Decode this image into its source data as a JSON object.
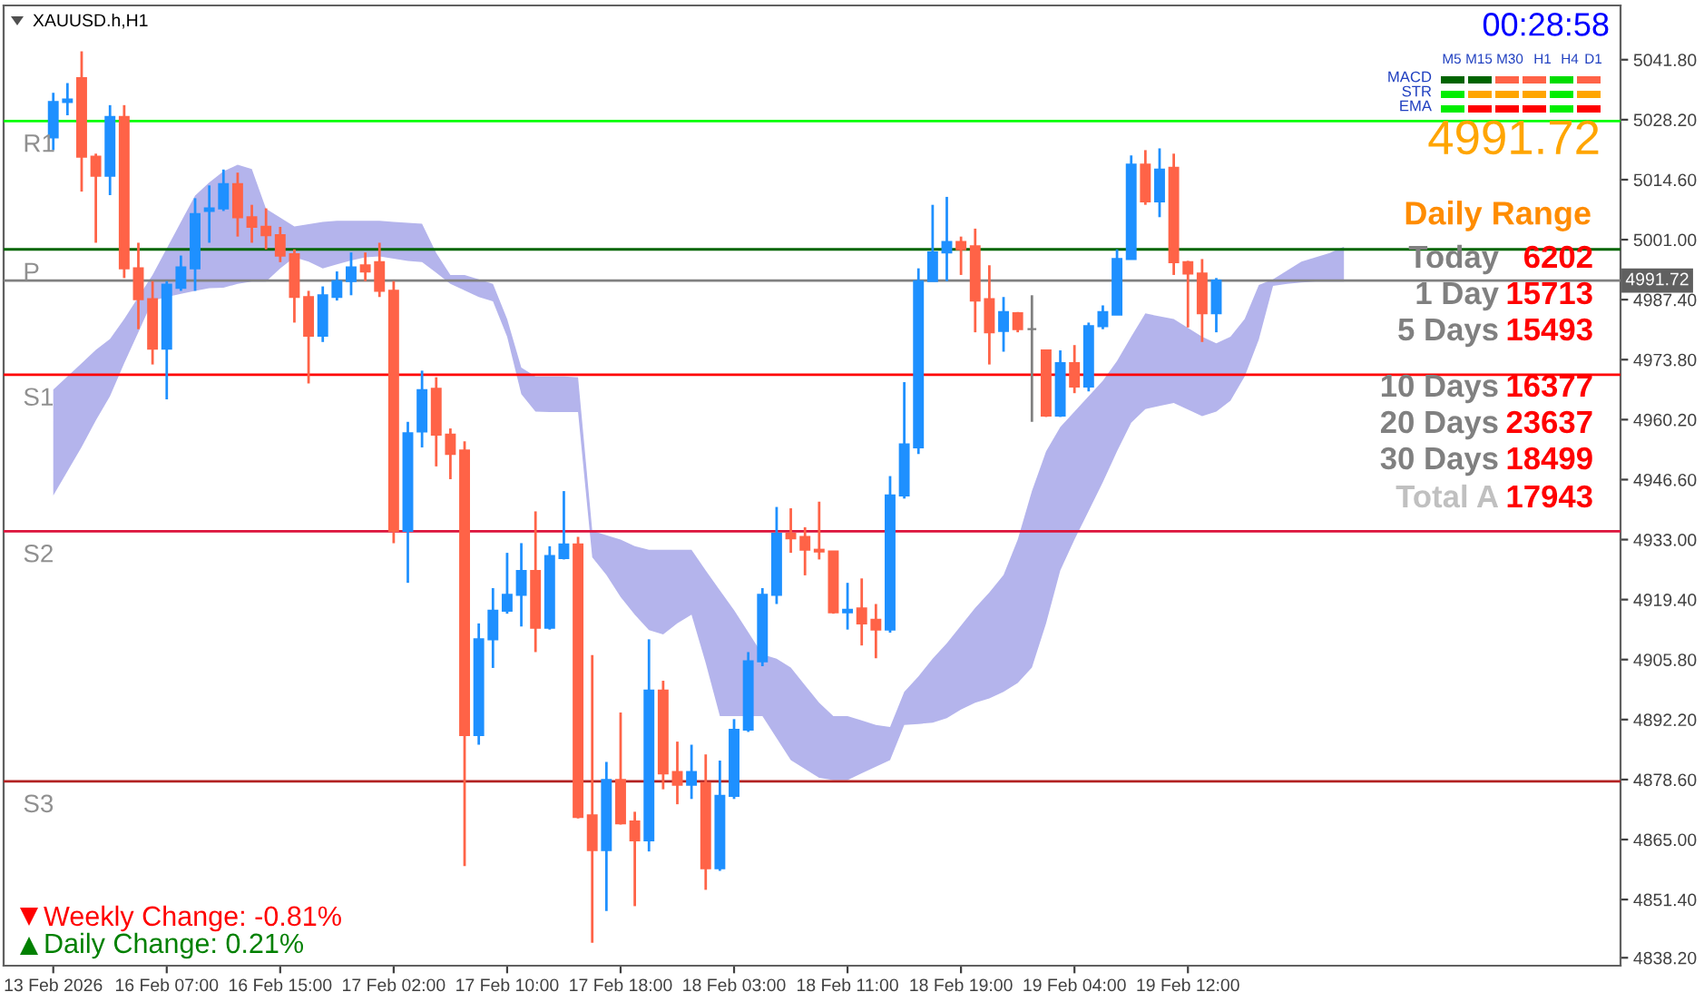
{
  "chart_data": {
    "type": "candlestick",
    "grid": false,
    "legend": false,
    "categories": [
      "13 Feb 2026",
      null,
      null,
      null,
      null,
      null,
      null,
      null,
      "16 Feb 07:00",
      null,
      null,
      null,
      null,
      null,
      null,
      null,
      "16 Feb 15:00",
      null,
      null,
      null,
      null,
      null,
      null,
      null,
      "17 Feb 02:00",
      null,
      null,
      null,
      null,
      null,
      null,
      null,
      "17 Feb 10:00",
      null,
      null,
      null,
      null,
      null,
      null,
      null,
      "17 Feb 18:00",
      null,
      null,
      null,
      null,
      null,
      null,
      null,
      "18 Feb 03:00",
      null,
      null,
      null,
      null,
      null,
      null,
      null,
      "18 Feb 11:00",
      null,
      null,
      null,
      null,
      null,
      null,
      null,
      "18 Feb 19:00",
      null,
      null,
      null,
      null,
      null,
      null,
      null,
      "19 Feb 04:00",
      null,
      null,
      null,
      null,
      null,
      null,
      null,
      "19 Feb 12:00",
      null,
      null,
      null,
      null,
      null,
      null,
      null,
      null,
      null,
      null,
      null,
      null,
      null,
      null,
      null,
      null,
      null,
      null,
      null,
      null,
      null,
      null,
      null,
      null,
      null,
      null,
      null,
      null,
      null,
      null
    ],
    "ylim": [
      4836.4,
      5054.1
    ],
    "yticks": [
      {
        "value": 5041.8,
        "label": "5041.80"
      },
      {
        "value": 5028.2,
        "label": "5028.20"
      },
      {
        "value": 5014.6,
        "label": "5014.60"
      },
      {
        "value": 5001.0,
        "label": "5001.00"
      },
      {
        "value": 4987.4,
        "label": "4987.40"
      },
      {
        "value": 4973.8,
        "label": "4973.80"
      },
      {
        "value": 4960.2,
        "label": "4960.20"
      },
      {
        "value": 4946.6,
        "label": "4946.60"
      },
      {
        "value": 4933.0,
        "label": "4933.00"
      },
      {
        "value": 4919.4,
        "label": "4919.40"
      },
      {
        "value": 4905.8,
        "label": "4905.80"
      },
      {
        "value": 4892.2,
        "label": "4892.20"
      },
      {
        "value": 4878.6,
        "label": "4878.60"
      },
      {
        "value": 4865.0,
        "label": "4865.00"
      },
      {
        "value": 4851.4,
        "label": "4851.40"
      },
      {
        "value": 4838.2,
        "label": "4838.20"
      }
    ],
    "ohlc": [
      [
        5024.2,
        5034.3,
        5021.3,
        5032.2
      ],
      [
        5032.2,
        5036.5,
        5029.2,
        5032.8
      ],
      [
        5037.6,
        5043.7,
        5011.9,
        5019.8
      ],
      [
        5019.8,
        5020.5,
        5000.3,
        5015.5
      ],
      [
        5015.5,
        5031.5,
        5011.1,
        5028.8
      ],
      [
        5028.8,
        5031.5,
        4992.3,
        4994.5
      ],
      [
        4994.5,
        5000.3,
        4980.7,
        4987.5
      ],
      [
        4987.5,
        4991.6,
        4972.7,
        4976.3
      ],
      [
        4976.3,
        4991.6,
        4964.8,
        4990.8
      ],
      [
        4990.1,
        4997.4,
        4989.4,
        4994.7
      ],
      [
        4994.5,
        5010.4,
        4989.4,
        5006.8
      ],
      [
        5007.5,
        5013.3,
        5000.3,
        5008.1
      ],
      [
        5008.1,
        5016.9,
        5007.5,
        5013.6
      ],
      [
        5013.6,
        5016.2,
        5001.7,
        5006.1
      ],
      [
        5006.1,
        5008.9,
        5000.3,
        5003.9
      ],
      [
        5003.9,
        5008.1,
        4998.8,
        5002.0
      ],
      [
        5002.0,
        5003.9,
        4995.9,
        4997.4
      ],
      [
        4997.7,
        4998.8,
        4982.2,
        4988.0
      ],
      [
        4988.0,
        4989.4,
        4968.4,
        4979.2
      ],
      [
        4979.2,
        4990.4,
        4977.8,
        4988.4
      ],
      [
        4988.0,
        4993.8,
        4987.2,
        4991.6
      ],
      [
        4991.6,
        4998.1,
        4988.4,
        4994.7
      ],
      [
        4995.2,
        4998.1,
        4991.6,
        4993.8
      ],
      [
        4995.9,
        5000.3,
        4988.0,
        4989.4
      ],
      [
        4989.4,
        4991.6,
        4932.2,
        4935.0
      ],
      [
        4935.0,
        4959.7,
        4923.2,
        4957.1
      ],
      [
        4957.5,
        4971.3,
        4953.9,
        4966.9
      ],
      [
        4967.2,
        4969.8,
        4949.6,
        4956.8
      ],
      [
        4956.8,
        4958.2,
        4946.7,
        4952.4
      ],
      [
        4953.2,
        4955.3,
        4859.0,
        4888.7
      ],
      [
        4888.7,
        4914.0,
        4886.5,
        4910.4
      ],
      [
        4910.4,
        4922.0,
        4903.9,
        4916.9
      ],
      [
        4916.9,
        4930.0,
        4916.2,
        4920.5
      ],
      [
        4920.5,
        4932.2,
        4913.3,
        4925.9
      ],
      [
        4925.9,
        4939.4,
        4907.5,
        4913.0
      ],
      [
        4913.0,
        4931.5,
        4912.6,
        4929.3
      ],
      [
        4928.8,
        4944.0,
        4928.5,
        4931.9
      ],
      [
        4931.9,
        4933.6,
        4869.8,
        4870.1
      ],
      [
        4870.5,
        4906.8,
        4841.6,
        4862.6
      ],
      [
        4862.6,
        4882.6,
        4848.8,
        4878.5
      ],
      [
        4878.5,
        4893.8,
        4868.4,
        4868.7
      ],
      [
        4869.1,
        4871.3,
        4849.9,
        4864.8
      ],
      [
        4864.8,
        4910.4,
        4862.3,
        4898.8
      ],
      [
        4898.8,
        4901.0,
        4876.4,
        4880.0
      ],
      [
        4880.3,
        4887.2,
        4873.0,
        4877.4
      ],
      [
        4877.4,
        4886.5,
        4874.2,
        4880.3
      ],
      [
        4877.8,
        4884.3,
        4853.6,
        4858.5
      ],
      [
        4858.5,
        4882.9,
        4857.9,
        4874.9
      ],
      [
        4874.9,
        4892.3,
        4874.2,
        4889.9
      ],
      [
        4889.9,
        4907.5,
        4889.4,
        4905.4
      ],
      [
        4905.4,
        4922.0,
        4904.3,
        4920.5
      ],
      [
        4920.5,
        4940.4,
        4918.4,
        4934.3
      ],
      [
        4934.3,
        4940.1,
        4930.0,
        4933.3
      ],
      [
        4933.6,
        4935.8,
        4924.9,
        4930.7
      ],
      [
        4930.7,
        4941.6,
        4928.5,
        4930.3
      ],
      [
        4930.3,
        4930.3,
        4916.2,
        4916.5
      ],
      [
        4916.5,
        4923.2,
        4912.6,
        4917.1
      ],
      [
        4917.4,
        4924.2,
        4909.0,
        4914.0
      ],
      [
        4914.8,
        4918.4,
        4906.1,
        4912.6
      ],
      [
        4912.6,
        4947.4,
        4911.9,
        4943.0
      ],
      [
        4943.0,
        4968.7,
        4942.3,
        4954.6
      ],
      [
        4953.9,
        4994.5,
        4952.4,
        4991.6
      ],
      [
        4991.6,
        5008.9,
        4991.6,
        4998.1
      ],
      [
        4998.1,
        5010.7,
        4991.6,
        5000.5
      ],
      [
        5000.5,
        5001.7,
        4993.0,
        4998.8
      ],
      [
        4999.5,
        5003.5,
        4980.0,
        4987.2
      ],
      [
        4987.5,
        4995.2,
        4972.7,
        4980.0
      ],
      [
        4980.3,
        4988.0,
        4975.6,
        4984.6
      ],
      [
        4984.3,
        4984.6,
        4980.0,
        4980.7
      ],
      [
        4980.7,
        4988.4,
        4959.7,
        4980.7
      ],
      [
        4975.9,
        4975.9,
        4960.8,
        4961.1
      ],
      [
        4961.1,
        4975.9,
        4960.8,
        4973.0
      ],
      [
        4973.0,
        4977.1,
        4966.2,
        4967.7
      ],
      [
        4967.7,
        4982.2,
        4966.6,
        4981.4
      ],
      [
        4981.4,
        4986.1,
        4980.7,
        4984.6
      ],
      [
        4984.0,
        4998.8,
        4984.0,
        4996.6
      ],
      [
        4996.6,
        5020.1,
        4996.6,
        5018.0
      ],
      [
        5018.0,
        5021.3,
        5008.9,
        5009.7
      ],
      [
        5009.7,
        5021.7,
        5006.1,
        5016.9
      ],
      [
        5017.3,
        5020.5,
        4993.0,
        4995.9
      ],
      [
        4995.9,
        4996.2,
        4981.1,
        4993.3
      ],
      [
        4993.3,
        4996.6,
        4977.8,
        4984.3
      ],
      [
        4984.3,
        4992.3,
        4980.0,
        4991.72
      ],
      null,
      null,
      null,
      null,
      null,
      null,
      null,
      null,
      null,
      null,
      null,
      null,
      null,
      null,
      null,
      null,
      null,
      null,
      null,
      null,
      null,
      null,
      null,
      null,
      null,
      null,
      null,
      null
    ],
    "colors": [
      "#1e90ff",
      "#1e90ff",
      "#ff6347",
      "#ff6347",
      "#1e90ff",
      "#ff6347",
      "#ff6347",
      "#ff6347",
      "#1e90ff",
      "#1e90ff",
      "#1e90ff",
      "#1e90ff",
      "#1e90ff",
      "#ff6347",
      "#ff6347",
      "#ff6347",
      "#ff6347",
      "#ff6347",
      "#ff6347",
      "#1e90ff",
      "#1e90ff",
      "#1e90ff",
      "#ff6347",
      "#ff6347",
      "#ff6347",
      "#1e90ff",
      "#1e90ff",
      "#ff6347",
      "#ff6347",
      "#ff6347",
      "#1e90ff",
      "#1e90ff",
      "#1e90ff",
      "#1e90ff",
      "#ff6347",
      "#1e90ff",
      "#1e90ff",
      "#ff6347",
      "#ff6347",
      "#1e90ff",
      "#ff6347",
      "#ff6347",
      "#1e90ff",
      "#ff6347",
      "#ff6347",
      "#1e90ff",
      "#ff6347",
      "#1e90ff",
      "#1e90ff",
      "#1e90ff",
      "#1e90ff",
      "#1e90ff",
      "#ff6347",
      "#ff6347",
      "#ff6347",
      "#ff6347",
      "#1e90ff",
      "#ff6347",
      "#ff6347",
      "#1e90ff",
      "#1e90ff",
      "#1e90ff",
      "#1e90ff",
      "#1e90ff",
      "#ff6347",
      "#ff6347",
      "#ff6347",
      "#1e90ff",
      "#ff6347",
      "#808080",
      "#ff6347",
      "#1e90ff",
      "#ff6347",
      "#1e90ff",
      "#1e90ff",
      "#1e90ff",
      "#1e90ff",
      "#ff6347",
      "#1e90ff",
      "#ff6347",
      "#ff6347",
      "#ff6347",
      "#1e90ff",
      null,
      null,
      null,
      null,
      null,
      null,
      null,
      null,
      null,
      null,
      null,
      null,
      null,
      null,
      null,
      null,
      null,
      null,
      null,
      null,
      null,
      null,
      null,
      null,
      null,
      null,
      null,
      null
    ],
    "series": [
      {
        "type": "line",
        "color": "#b4b4ec",
        "values": [
          null,
          null,
          null,
          null,
          null,
          null,
          null,
          null,
          null,
          null,
          null,
          null,
          null,
          null,
          null,
          null,
          null,
          null,
          null,
          null,
          null,
          null,
          null,
          null,
          null,
          null,
          null,
          null,
          null,
          null,
          null,
          null,
          null,
          null,
          null,
          null,
          null,
          null,
          null,
          null,
          null,
          null,
          null,
          null,
          null,
          null,
          null,
          null,
          null,
          null,
          null,
          null,
          null,
          null,
          null,
          null,
          null,
          null,
          null,
          null,
          null,
          null,
          null,
          null,
          null,
          null,
          null,
          null,
          null,
          null,
          null,
          null,
          null,
          null,
          null,
          null,
          null,
          null,
          null,
          null,
          null,
          null,
          null,
          null,
          null,
          null,
          null,
          null,
          null,
          null,
          null,
          null,
          null,
          null,
          null,
          null,
          null,
          null,
          null,
          null,
          null,
          null,
          null,
          null,
          null,
          null,
          null,
          null,
          null,
          null,
          null
        ],
        "upper": [
          4967,
          4970,
          4973,
          4976,
          4978.5,
          4983,
          4988,
          4993,
          4999,
          5005,
          5011,
          5014,
          5016.5,
          5018,
          5017,
          5008,
          5006,
          5004,
          5004.5,
          5005,
          5005.3,
          5005.3,
          5005.3,
          5005.3,
          5005,
          5004.8,
          5004.6,
          4998,
          4993,
          4993,
          4992,
          4991,
          4983,
          4972,
          4970,
          4970,
          4970,
          4969.8,
          4935,
          4934,
          4933,
          4931.5,
          4930.7,
          4930.7,
          4930.7,
          4930.7,
          4926,
          4921.5,
          4917,
          4912,
          4907,
          4906,
          4904,
          4900,
          4896,
          4893,
          4893,
          4892,
          4891,
          4890.5,
          4898.5,
          4902,
          4906,
          4909.5,
          4913.5,
          4917.5,
          4921,
          4925,
          4933,
          4944,
          4953,
          4958.5,
          4962,
          4965.5,
          4969,
          4973.5,
          4979,
          4984.3,
          4983.6,
          4983,
          4981,
          4979,
          4977.5,
          4979,
          4983,
          4990.7,
          4992,
          4994,
          4996,
          4997,
          4998,
          4999.4,
          null,
          null,
          null,
          null,
          null,
          null,
          null,
          null,
          null,
          null,
          null,
          null,
          null,
          null,
          null,
          null,
          null,
          null,
          null
        ],
        "lower": [
          4943,
          4948.5,
          4954,
          4960,
          4965.5,
          4973,
          4980,
          4987.2,
          4988,
          4988.7,
          4989.4,
          4990,
          4990.1,
          4991,
          4991.5,
          4991.5,
          4994.5,
          4997,
          4996,
          4994.5,
          4995.4,
          4996.3,
          4997,
          4997.2,
          4996.7,
          4996.2,
          4995.9,
          4993.5,
          4991,
          4989.5,
          4988,
          4987,
          4979,
          4966,
          4962,
          4961.9,
          4961.9,
          4961.9,
          4929,
          4925,
          4920,
          4916,
          4912.5,
          4911.5,
          4914,
          4916,
          4905,
          4893,
          4893,
          4893,
          4893,
          4888,
          4883,
          4881,
          4879,
          4878.5,
          4878.5,
          4880,
          4881.5,
          4883,
          4891,
          4891.2,
          4891.5,
          4892.5,
          4894.5,
          4896,
          4897,
          4898.5,
          4900.5,
          4904,
          4914,
          4926,
          4933,
          4939.5,
          4946,
          4953,
          4959.5,
          4962.6,
          4963.3,
          4964,
          4962.5,
          4961,
          4962,
          4964.5,
          4970,
          4978.4,
          4990.5,
          4991,
          4991.3,
          4991.5,
          4991.5,
          4991.5,
          null,
          null,
          null,
          null,
          null,
          null,
          null,
          null,
          null,
          null,
          null,
          null,
          null,
          null,
          null,
          null,
          null,
          null,
          null
        ]
      }
    ],
    "ref_lines": [
      {
        "axis": "y",
        "value": 5027.9,
        "label": "R1",
        "color": "#00ff00"
      },
      {
        "axis": "y",
        "value": 4998.8,
        "label": "P",
        "color": "#006400"
      },
      {
        "axis": "y",
        "value": 4970.4,
        "label": "S1",
        "color": "#ff0000"
      },
      {
        "axis": "y",
        "value": 4934.9,
        "label": "S2",
        "color": "#dc143c"
      },
      {
        "axis": "y",
        "value": 4878.2,
        "label": "S3",
        "color": "#b22222"
      },
      {
        "axis": "y",
        "value": 4991.72,
        "label": "4991.72",
        "color": "#808080"
      }
    ],
    "annotations": [
      "XAUUSD.h,H1",
      "00:28:58",
      "M5",
      "M15",
      "M30",
      "H1",
      "H4",
      "D1",
      "MACD",
      "STR",
      "EMA",
      "4991.72",
      "Daily Range",
      "Today",
      "6202",
      "1 Day",
      "15713",
      "5 Days",
      "15493",
      "10 Days",
      "16377",
      "20 Days",
      "23637",
      "30 Days",
      "18499",
      "Total A",
      "17943",
      "Weekly Change: -0.81%",
      "Daily Change: 0.21%"
    ]
  }
}
